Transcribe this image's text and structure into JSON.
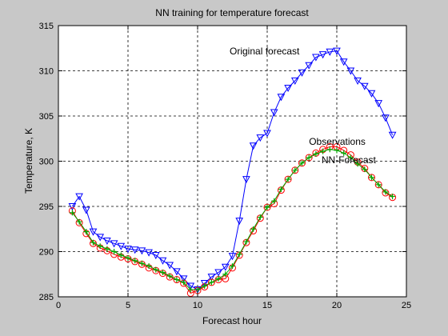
{
  "chart_data": {
    "type": "line",
    "title": "NN training for temperature forecast",
    "xlabel": "Forecast hour",
    "ylabel": "Temperature, K",
    "xlim": [
      0,
      25
    ],
    "ylim": [
      285,
      315
    ],
    "xticks": [
      0,
      5,
      10,
      15,
      20,
      25
    ],
    "yticks": [
      285,
      290,
      295,
      300,
      305,
      310,
      315
    ],
    "grid": true,
    "annotations": [
      {
        "text": "Original forecast",
        "x": 12.3,
        "y": 311.8
      },
      {
        "text": "Observations",
        "x": 18.0,
        "y": 301.8
      },
      {
        "text": "NN-Forecast",
        "x": 18.9,
        "y": 299.8
      }
    ],
    "series": [
      {
        "color": "#0000ff",
        "marker": "triangle-down",
        "x": [
          1,
          1.5,
          2,
          2.5,
          3,
          3.5,
          4,
          4.5,
          5,
          5.5,
          6,
          6.5,
          7,
          7.5,
          8,
          8.5,
          9,
          9.5,
          10,
          10.5,
          11,
          11.5,
          12,
          12.5,
          13,
          13.5,
          14,
          14.5,
          15,
          15.5,
          16,
          16.5,
          17,
          17.5,
          18,
          18.5,
          19,
          19.5,
          20,
          20.5,
          21,
          21.5,
          22,
          22.5,
          23,
          23.5,
          24
        ],
        "y": [
          295.0,
          296.1,
          294.6,
          292.2,
          291.6,
          291.2,
          290.9,
          290.6,
          290.3,
          290.2,
          290.1,
          289.9,
          289.6,
          289.0,
          288.5,
          287.8,
          287.0,
          286.2,
          285.8,
          286.5,
          287.2,
          287.7,
          288.3,
          289.5,
          293.4,
          298.0,
          301.7,
          302.6,
          303.1,
          305.4,
          307.1,
          308.1,
          308.9,
          309.8,
          310.6,
          311.5,
          311.8,
          312.1,
          312.2,
          311.0,
          310.0,
          308.9,
          308.3,
          307.5,
          306.4,
          304.8,
          302.9
        ]
      },
      {
        "color": "#ff0000",
        "marker": "circle",
        "x": [
          1,
          1.5,
          2,
          2.5,
          3,
          3.5,
          4,
          4.5,
          5,
          5.5,
          6,
          6.5,
          7,
          7.5,
          8,
          8.5,
          9,
          9.5,
          10,
          10.5,
          11,
          11.5,
          12,
          12.5,
          13,
          13.5,
          14,
          14.5,
          15,
          15.5,
          16,
          16.5,
          17,
          17.5,
          18,
          18.5,
          19,
          19.5,
          20,
          20.5,
          21,
          21.5,
          22,
          22.5,
          23,
          23.5,
          24
        ],
        "y": [
          294.5,
          293.2,
          292.0,
          290.9,
          290.4,
          290.1,
          289.7,
          289.4,
          289.2,
          288.9,
          288.6,
          288.2,
          287.9,
          287.6,
          287.2,
          286.9,
          286.5,
          285.4,
          285.7,
          286.1,
          286.6,
          286.9,
          287.0,
          288.2,
          289.6,
          291.0,
          292.3,
          293.7,
          294.9,
          295.3,
          296.8,
          298.0,
          299.0,
          299.8,
          300.4,
          300.9,
          301.3,
          301.6,
          301.6,
          301.2,
          300.7,
          299.9,
          299.2,
          298.2,
          297.4,
          296.5,
          296.0
        ]
      },
      {
        "color": "#00aa00",
        "marker": "plus",
        "x": [
          1,
          1.5,
          2,
          2.5,
          3,
          3.5,
          4,
          4.5,
          5,
          5.5,
          6,
          6.5,
          7,
          7.5,
          8,
          8.5,
          9,
          9.5,
          10,
          10.5,
          11,
          11.5,
          12,
          12.5,
          13,
          13.5,
          14,
          14.5,
          15,
          15.5,
          16,
          16.5,
          17,
          17.5,
          18,
          18.5,
          19,
          19.5,
          20,
          20.5,
          21,
          21.5,
          22,
          22.5,
          23,
          23.5,
          24
        ],
        "y": [
          294.3,
          293.3,
          292.2,
          291.0,
          290.6,
          290.3,
          290.0,
          289.6,
          289.3,
          289.0,
          288.7,
          288.4,
          288.0,
          287.7,
          287.3,
          286.9,
          286.6,
          285.8,
          285.8,
          286.2,
          286.6,
          287.0,
          287.5,
          288.4,
          289.7,
          291.1,
          292.5,
          293.8,
          294.9,
          295.6,
          296.9,
          298.0,
          299.0,
          299.8,
          300.4,
          300.8,
          301.1,
          301.3,
          301.2,
          300.9,
          300.4,
          299.7,
          299.1,
          298.2,
          297.4,
          296.6,
          296.1
        ]
      }
    ]
  }
}
